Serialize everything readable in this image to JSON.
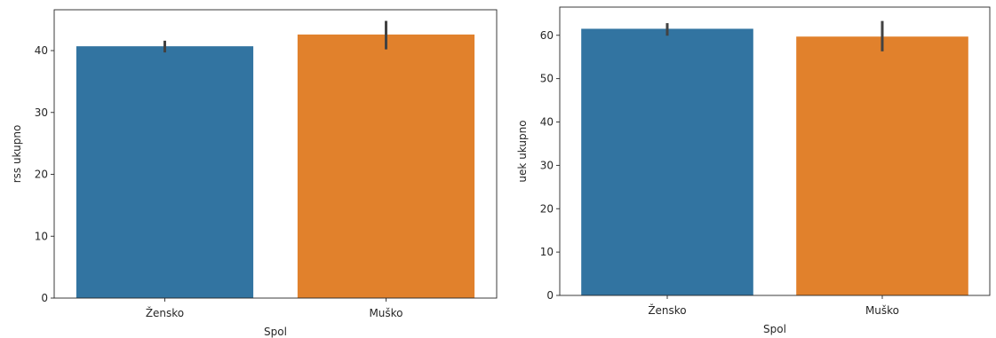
{
  "chart_data": [
    {
      "type": "bar",
      "categories": [
        "Žensko",
        "Muško"
      ],
      "values": [
        40.7,
        42.6
      ],
      "error": [
        [
          39.7,
          41.6
        ],
        [
          40.2,
          44.8
        ]
      ],
      "colors": [
        "#3274a1",
        "#e1812c"
      ],
      "error_color": "#424242",
      "xlabel": "Spol",
      "ylabel": "rss ukupno",
      "ylim": [
        0,
        46.6
      ],
      "yticks": [
        0,
        10,
        20,
        30,
        40
      ],
      "grid": false
    },
    {
      "type": "bar",
      "categories": [
        "Žensko",
        "Muško"
      ],
      "values": [
        61.5,
        59.7
      ],
      "error": [
        [
          59.9,
          62.8
        ],
        [
          56.3,
          63.3
        ]
      ],
      "colors": [
        "#3274a1",
        "#e1812c"
      ],
      "error_color": "#424242",
      "xlabel": "Spol",
      "ylabel": "uek ukupno",
      "ylim": [
        0,
        66.5
      ],
      "yticks": [
        0,
        10,
        20,
        30,
        40,
        50,
        60
      ],
      "grid": false
    }
  ]
}
